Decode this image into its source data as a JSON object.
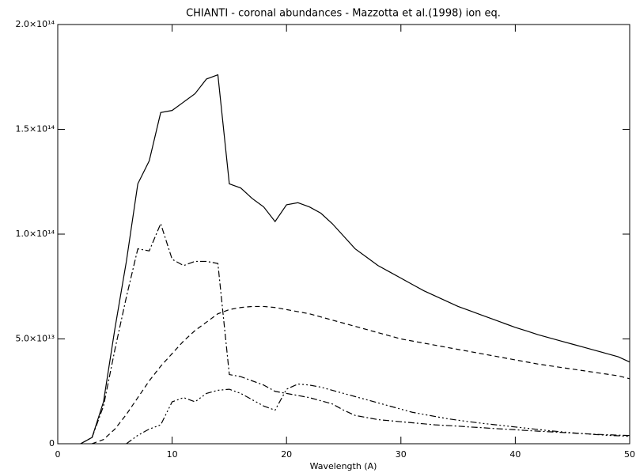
{
  "chart_data": {
    "type": "line",
    "title": "CHIANTI - coronal abundances - Mazzotta et al.(1998) ion eq.",
    "x_label": "Wavelength (A)",
    "x": [
      2,
      3,
      4,
      5,
      6,
      7,
      8,
      9,
      10,
      11,
      12,
      13,
      14,
      15,
      16,
      17,
      18,
      19,
      20,
      21,
      22,
      23,
      24,
      25,
      26,
      27,
      28,
      29,
      30,
      31,
      32,
      33,
      34,
      35,
      36,
      37,
      38,
      39,
      40,
      41,
      42,
      43,
      44,
      45,
      46,
      47,
      48,
      49,
      50
    ],
    "series": [
      {
        "color": "#000000",
        "dash": "none",
        "values": [
          0,
          3000000000000.0,
          20000000000000.0,
          55000000000000.0,
          87000000000000.0,
          124000000000000.0,
          135000000000000.0,
          158000000000000.0,
          159000000000000.0,
          163000000000000.0,
          167000000000000.0,
          174000000000000.0,
          176000000000000.0,
          124000000000000.0,
          122000000000000.0,
          117000000000000.0,
          113000000000000.0,
          106000000000000.0,
          114000000000000.0,
          115000000000000.0,
          113000000000000.0,
          110000000000000.0,
          105000000000000.0,
          99000000000000.0,
          93000000000000.0,
          89000000000000.0,
          85000000000000.0,
          82000000000000.0,
          79000000000000.0,
          76000000000000.0,
          73000000000000.0,
          70500000000000.0,
          68000000000000.0,
          65500000000000.0,
          63500000000000.0,
          61500000000000.0,
          59500000000000.0,
          57500000000000.0,
          55500000000000.0,
          53800000000000.0,
          52000000000000.0,
          50500000000000.0,
          49000000000000.0,
          47500000000000.0,
          46000000000000.0,
          44500000000000.0,
          43000000000000.0,
          41500000000000.0,
          39000000000000.0
        ]
      },
      {
        "color": "#000000",
        "dash": "6,4",
        "values": [
          null,
          0,
          2000000000000.0,
          7000000000000.0,
          14000000000000.0,
          22000000000000.0,
          30000000000000.0,
          37000000000000.0,
          43000000000000.0,
          49000000000000.0,
          54000000000000.0,
          58000000000000.0,
          62000000000000.0,
          64000000000000.0,
          65000000000000.0,
          65500000000000.0,
          65500000000000.0,
          65000000000000.0,
          64000000000000.0,
          63000000000000.0,
          62000000000000.0,
          60500000000000.0,
          59000000000000.0,
          57500000000000.0,
          56000000000000.0,
          54500000000000.0,
          53000000000000.0,
          51500000000000.0,
          50000000000000.0,
          49000000000000.0,
          48000000000000.0,
          47000000000000.0,
          46000000000000.0,
          45000000000000.0,
          44000000000000.0,
          43000000000000.0,
          42000000000000.0,
          41000000000000.0,
          40000000000000.0,
          39000000000000.0,
          38000000000000.0,
          37200000000000.0,
          36400000000000.0,
          35600000000000.0,
          34800000000000.0,
          34000000000000.0,
          33200000000000.0,
          32400000000000.0,
          31000000000000.0
        ]
      },
      {
        "color": "#000000",
        "dash": "8,3,2,3",
        "values": [
          0,
          3000000000000.0,
          18000000000000.0,
          45000000000000.0,
          70000000000000.0,
          93000000000000.0,
          92000000000000.0,
          105000000000000.0,
          88000000000000.0,
          85000000000000.0,
          87000000000000.0,
          87000000000000.0,
          86000000000000.0,
          33000000000000.0,
          32000000000000.0,
          30000000000000.0,
          28000000000000.0,
          25000000000000.0,
          24000000000000.0,
          23000000000000.0,
          22000000000000.0,
          20500000000000.0,
          19000000000000.0,
          16000000000000.0,
          13500000000000.0,
          12500000000000.0,
          11500000000000.0,
          11000000000000.0,
          10500000000000.0,
          10000000000000.0,
          9500000000000.0,
          9000000000000.0,
          8700000000000.0,
          8400000000000.0,
          8000000000000.0,
          7700000000000.0,
          7300000000000.0,
          7000000000000.0,
          6700000000000.0,
          6300000000000.0,
          6000000000000.0,
          5700000000000.0,
          5400000000000.0,
          5100000000000.0,
          4800000000000.0,
          4500000000000.0,
          4300000000000.0,
          4100000000000.0,
          3900000000000.0
        ]
      },
      {
        "color": "#000000",
        "dash": "8,3,2,3,2,3,2,3",
        "values": [
          null,
          null,
          null,
          null,
          0,
          4000000000000.0,
          7000000000000.0,
          9000000000000.0,
          20000000000000.0,
          22000000000000.0,
          20000000000000.0,
          24000000000000.0,
          25500000000000.0,
          26000000000000.0,
          24000000000000.0,
          21000000000000.0,
          18000000000000.0,
          16000000000000.0,
          26000000000000.0,
          28500000000000.0,
          28000000000000.0,
          27000000000000.0,
          25500000000000.0,
          24000000000000.0,
          22500000000000.0,
          21000000000000.0,
          19500000000000.0,
          18000000000000.0,
          16500000000000.0,
          15000000000000.0,
          14000000000000.0,
          13000000000000.0,
          12000000000000.0,
          11200000000000.0,
          10500000000000.0,
          9800000000000.0,
          9200000000000.0,
          8600000000000.0,
          8000000000000.0,
          7400000000000.0,
          6800000000000.0,
          6200000000000.0,
          5700000000000.0,
          5200000000000.0,
          4800000000000.0,
          4400000000000.0,
          4000000000000.0,
          3800000000000.0,
          3500000000000.0
        ]
      }
    ],
    "xlim": [
      0,
      50
    ],
    "xticks": [
      0,
      10,
      20,
      30,
      40,
      50
    ],
    "ylim": [
      0,
      200000000000000.0
    ],
    "yticks": [
      0,
      {
        "value": 50000000000000.0,
        "label": "5.0×10¹³"
      },
      {
        "value": 100000000000000.0,
        "label": "1.0×10¹⁴"
      },
      {
        "value": 150000000000000.0,
        "label": "1.5×10¹⁴"
      },
      {
        "value": 200000000000000.0,
        "label": "2.0×10¹⁴"
      }
    ],
    "grid": false
  }
}
